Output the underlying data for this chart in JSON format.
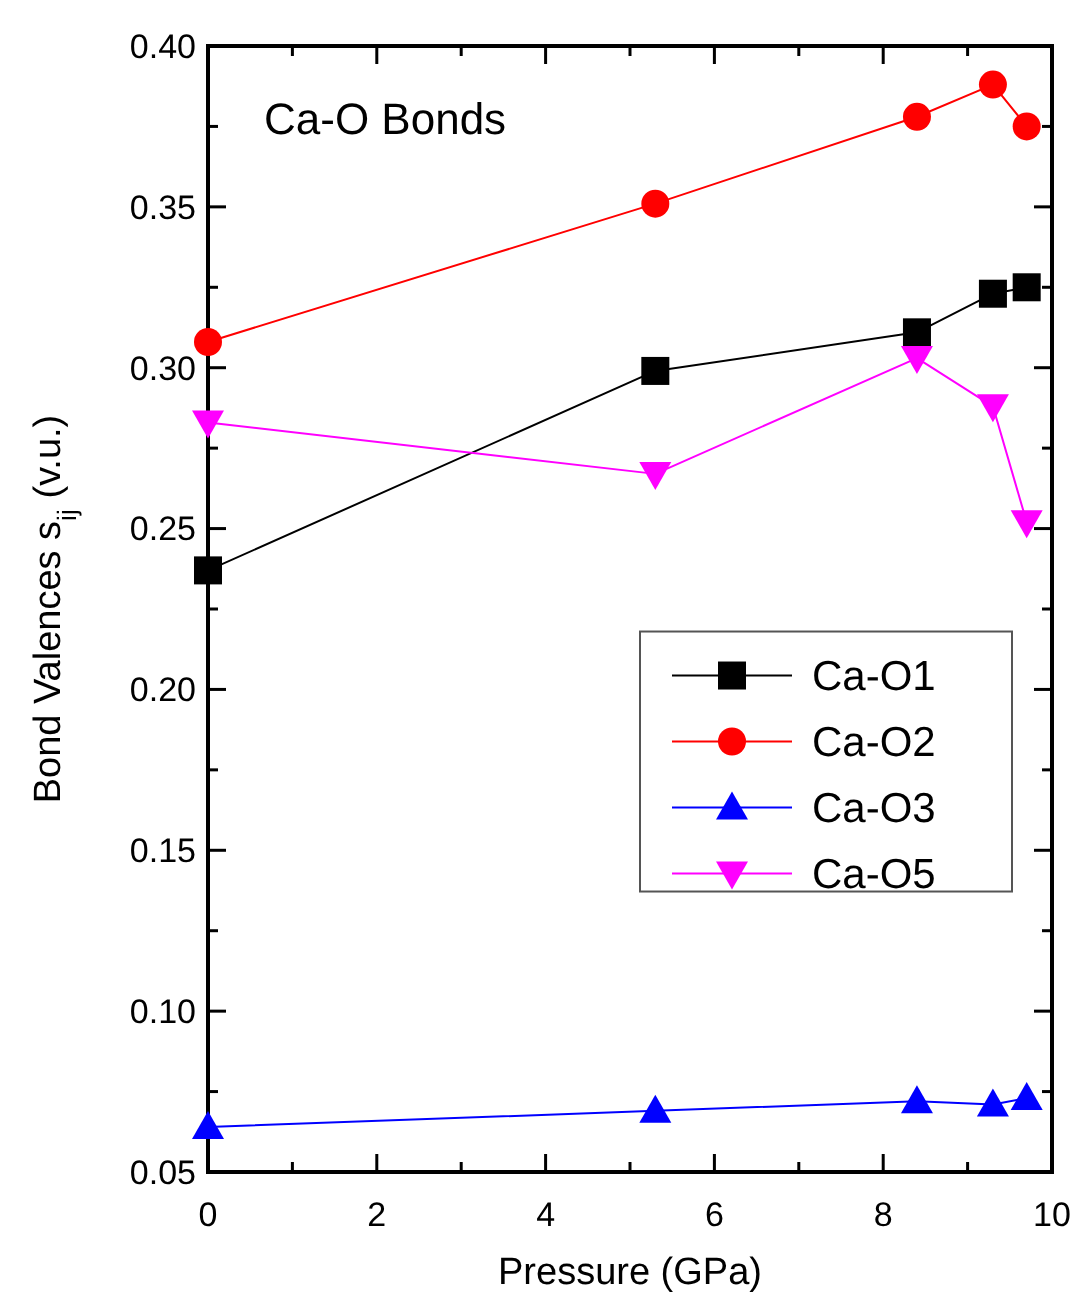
{
  "chart_data": {
    "type": "line",
    "title": "Ca-O Bonds",
    "xlabel": "Pressure (GPa)",
    "ylabel": "Bond Valences s$_{ij}$ (v.u.)",
    "x": [
      0,
      5.3,
      8.4,
      9.3,
      9.7
    ],
    "series": [
      {
        "name": "Ca-O1",
        "color": "#000000",
        "marker": "square",
        "values": [
          0.237,
          0.299,
          0.311,
          0.323,
          0.325
        ]
      },
      {
        "name": "Ca-O2",
        "color": "#ff0000",
        "marker": "circle",
        "values": [
          0.308,
          0.351,
          0.378,
          0.388,
          0.375
        ]
      },
      {
        "name": "Ca-O3",
        "color": "#0000ff",
        "marker": "triangle",
        "values": [
          0.064,
          0.069,
          0.072,
          0.071,
          0.073
        ]
      },
      {
        "name": "Ca-O5",
        "color": "#ff00ff",
        "marker": "triangle-down",
        "values": [
          0.283,
          0.267,
          0.303,
          0.288,
          0.252
        ]
      }
    ],
    "xlim": [
      0,
      10
    ],
    "ylim": [
      0.05,
      0.4
    ],
    "xticks": [
      0,
      {
        "value": 1,
        "label": null
      },
      2,
      {
        "value": 3,
        "label": null
      },
      4,
      {
        "value": 5,
        "label": null
      },
      6,
      {
        "value": 7,
        "label": null
      },
      8,
      {
        "value": 9,
        "label": null
      },
      10
    ],
    "yticks": [
      {
        "value": 0.05,
        "label": "0.05"
      },
      {
        "value": 0.075,
        "label": null
      },
      {
        "value": 0.1,
        "label": "0.10"
      },
      {
        "value": 0.125,
        "label": null
      },
      {
        "value": 0.15,
        "label": "0.15"
      },
      {
        "value": 0.175,
        "label": null
      },
      {
        "value": 0.2,
        "label": "0.20"
      },
      {
        "value": 0.225,
        "label": null
      },
      {
        "value": 0.25,
        "label": "0.25"
      },
      {
        "value": 0.275,
        "label": null
      },
      {
        "value": 0.3,
        "label": "0.30"
      },
      {
        "value": 0.325,
        "label": null
      },
      {
        "value": 0.35,
        "label": "0.35"
      },
      {
        "value": 0.375,
        "label": null
      },
      {
        "value": 0.4,
        "label": "0.40"
      }
    ],
    "legend": "right",
    "grid": false,
    "line_style": "solid"
  }
}
